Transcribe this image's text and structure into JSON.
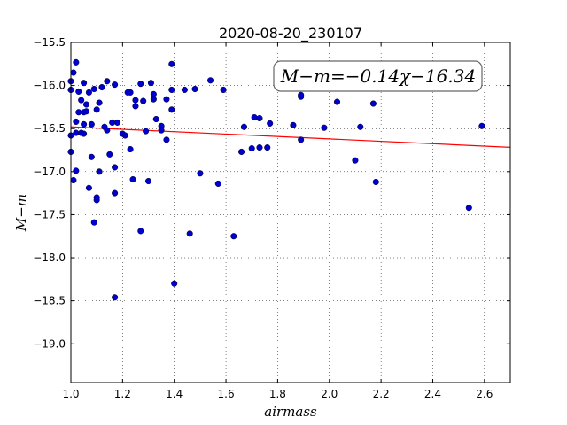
{
  "chart_data": {
    "type": "scatter",
    "title": "2020-08-20_230107",
    "xlabel": "airmass",
    "ylabel": "M−m",
    "xlim": [
      1.0,
      2.7
    ],
    "ylim": [
      -15.5,
      -19.45
    ],
    "y_inverted": true,
    "grid": true,
    "x_ticks": [
      1.0,
      1.2,
      1.4,
      1.6,
      1.8,
      2.0,
      2.2,
      2.4,
      2.6
    ],
    "x_tick_labels": [
      "1.0",
      "1.2",
      "1.4",
      "1.6",
      "1.8",
      "2.0",
      "2.2",
      "2.4",
      "2.6"
    ],
    "y_ticks": [
      -15.5,
      -16.0,
      -16.5,
      -17.0,
      -17.5,
      -18.0,
      -18.5,
      -19.0
    ],
    "y_tick_labels": [
      "−15.5",
      "−16.0",
      "−16.5",
      "−17.0",
      "−17.5",
      "−18.0",
      "−18.5",
      "−19.0"
    ],
    "annotation": "M−m=−0.14χ−16.34",
    "fit": {
      "slope": -0.14,
      "intercept": -16.34,
      "color": "#ff0000"
    },
    "marker_color": "#0000cc",
    "points": [
      [
        1.0,
        -15.95
      ],
      [
        1.01,
        -15.85
      ],
      [
        1.02,
        -15.73
      ],
      [
        1.0,
        -16.05
      ],
      [
        1.03,
        -16.07
      ],
      [
        1.05,
        -15.97
      ],
      [
        1.07,
        -16.08
      ],
      [
        1.09,
        -16.04
      ],
      [
        1.12,
        -16.02
      ],
      [
        1.14,
        -15.95
      ],
      [
        1.17,
        -15.99
      ],
      [
        1.04,
        -16.17
      ],
      [
        1.06,
        -16.22
      ],
      [
        1.11,
        -16.2
      ],
      [
        1.03,
        -16.31
      ],
      [
        1.05,
        -16.31
      ],
      [
        1.06,
        -16.3
      ],
      [
        1.1,
        -16.28
      ],
      [
        1.02,
        -16.42
      ],
      [
        1.05,
        -16.45
      ],
      [
        1.08,
        -16.45
      ],
      [
        1.13,
        -16.48
      ],
      [
        1.14,
        -16.52
      ],
      [
        1.16,
        -16.43
      ],
      [
        1.18,
        -16.43
      ],
      [
        1.0,
        -16.58
      ],
      [
        1.02,
        -16.55
      ],
      [
        1.04,
        -16.55
      ],
      [
        1.05,
        -16.56
      ],
      [
        1.2,
        -16.56
      ],
      [
        1.21,
        -16.58
      ],
      [
        1.0,
        -16.77
      ],
      [
        1.08,
        -16.83
      ],
      [
        1.15,
        -16.8
      ],
      [
        1.23,
        -16.74
      ],
      [
        1.01,
        -17.1
      ],
      [
        1.02,
        -16.99
      ],
      [
        1.07,
        -17.19
      ],
      [
        1.11,
        -17.0
      ],
      [
        1.17,
        -16.95
      ],
      [
        1.1,
        -17.3
      ],
      [
        1.1,
        -17.33
      ],
      [
        1.09,
        -17.59
      ],
      [
        1.17,
        -17.25
      ],
      [
        1.22,
        -16.08
      ],
      [
        1.23,
        -16.08
      ],
      [
        1.27,
        -15.98
      ],
      [
        1.31,
        -15.97
      ],
      [
        1.32,
        -16.1
      ],
      [
        1.25,
        -16.17
      ],
      [
        1.28,
        -16.18
      ],
      [
        1.32,
        -16.16
      ],
      [
        1.37,
        -16.16
      ],
      [
        1.25,
        -16.24
      ],
      [
        1.33,
        -16.39
      ],
      [
        1.39,
        -16.28
      ],
      [
        1.29,
        -16.53
      ],
      [
        1.35,
        -16.47
      ],
      [
        1.35,
        -16.52
      ],
      [
        1.37,
        -16.63
      ],
      [
        1.39,
        -15.75
      ],
      [
        1.39,
        -16.05
      ],
      [
        1.44,
        -16.05
      ],
      [
        1.48,
        -16.04
      ],
      [
        1.54,
        -15.94
      ],
      [
        1.59,
        -16.05
      ],
      [
        1.24,
        -17.09
      ],
      [
        1.3,
        -17.11
      ],
      [
        1.27,
        -17.69
      ],
      [
        1.5,
        -17.02
      ],
      [
        1.57,
        -17.14
      ],
      [
        1.46,
        -17.72
      ],
      [
        1.63,
        -17.75
      ],
      [
        1.4,
        -18.3
      ],
      [
        1.17,
        -18.46
      ],
      [
        1.67,
        -16.48
      ],
      [
        1.71,
        -16.37
      ],
      [
        1.73,
        -16.38
      ],
      [
        1.77,
        -16.44
      ],
      [
        1.66,
        -16.77
      ],
      [
        1.7,
        -16.73
      ],
      [
        1.73,
        -16.72
      ],
      [
        1.76,
        -16.72
      ],
      [
        1.86,
        -16.46
      ],
      [
        1.89,
        -16.13
      ],
      [
        1.89,
        -16.11
      ],
      [
        1.89,
        -16.63
      ],
      [
        1.98,
        -16.49
      ],
      [
        2.03,
        -16.19
      ],
      [
        2.1,
        -16.87
      ],
      [
        2.12,
        -16.48
      ],
      [
        2.17,
        -16.21
      ],
      [
        2.18,
        -17.12
      ],
      [
        2.54,
        -17.42
      ],
      [
        2.59,
        -16.47
      ]
    ]
  }
}
